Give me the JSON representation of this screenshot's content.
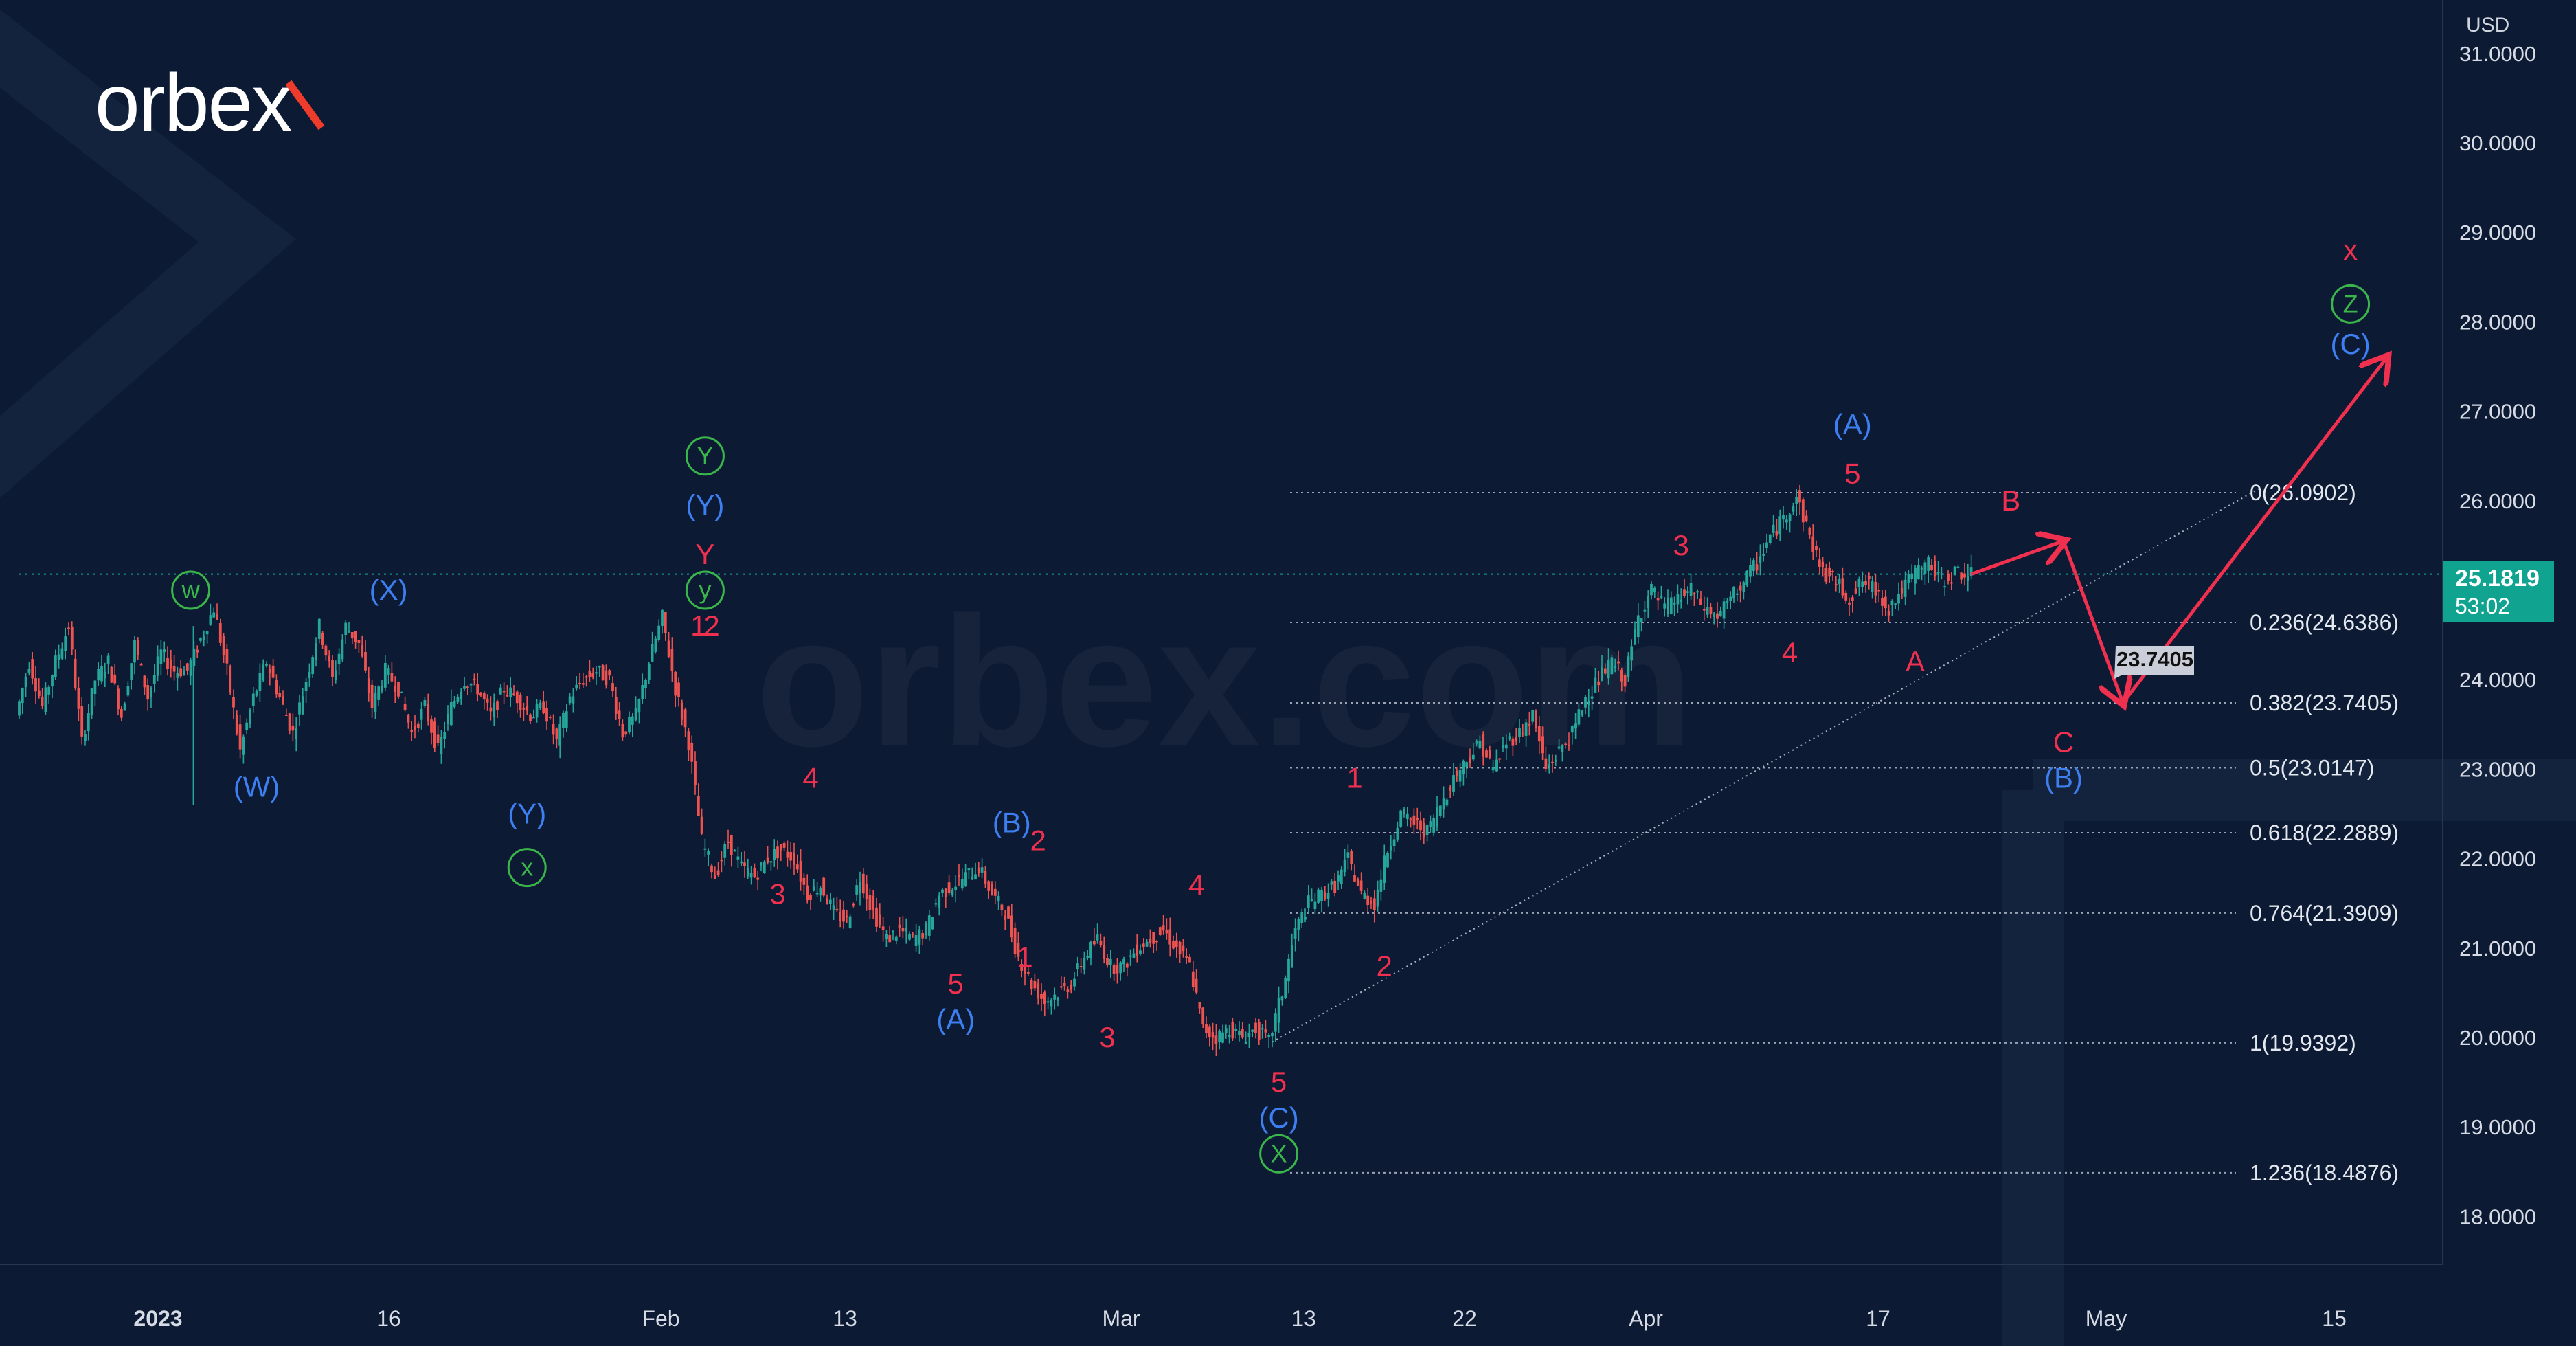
{
  "brand": {
    "logo_text": "orbex",
    "watermark_text": "orbex.com"
  },
  "chart_data": {
    "type": "candlestick",
    "currency": "USD",
    "x_tick_labels": [
      "2023",
      "16",
      "Feb",
      "13",
      "Mar",
      "13",
      "22",
      "Apr",
      "17",
      "May",
      "15"
    ],
    "y_ticks": [
      "31.0000",
      "30.0000",
      "29.0000",
      "28.0000",
      "27.0000",
      "26.0000",
      "24.0000",
      "23.0000",
      "22.0000",
      "21.0000",
      "20.0000",
      "19.0000",
      "18.0000"
    ],
    "ylim": [
      17.0,
      31.5
    ],
    "last_price": {
      "value": "25.1819",
      "countdown": "53:02"
    },
    "price_line": 25.18,
    "target_label": "23.7405",
    "fibonacci": [
      {
        "level": 26.0902,
        "label": "0(26.0902)"
      },
      {
        "level": 24.6386,
        "label": "0.236(24.6386)"
      },
      {
        "level": 23.7405,
        "label": "0.382(23.7405)"
      },
      {
        "level": 23.0147,
        "label": "0.5(23.0147)"
      },
      {
        "level": 22.2889,
        "label": "0.618(22.2889)"
      },
      {
        "level": 21.3909,
        "label": "0.764(21.3909)"
      },
      {
        "level": 19.9392,
        "label": "1(19.9392)"
      },
      {
        "level": 18.4876,
        "label": "1.236(18.4876)"
      }
    ],
    "price_path": [
      [
        0,
        23.6
      ],
      [
        4,
        24.2
      ],
      [
        8,
        23.7
      ],
      [
        12,
        24.2
      ],
      [
        16,
        24.6
      ],
      [
        20,
        23.3
      ],
      [
        24,
        24.0
      ],
      [
        28,
        24.2
      ],
      [
        32,
        23.6
      ],
      [
        36,
        24.4
      ],
      [
        40,
        23.8
      ],
      [
        44,
        24.3
      ],
      [
        48,
        24.1
      ],
      [
        52,
        24.1
      ],
      [
        60,
        24.8
      ],
      [
        64,
        24.1
      ],
      [
        68,
        23.2
      ],
      [
        72,
        23.8
      ],
      [
        76,
        24.2
      ],
      [
        80,
        23.8
      ],
      [
        84,
        23.4
      ],
      [
        88,
        24.0
      ],
      [
        92,
        24.6
      ],
      [
        96,
        24.0
      ],
      [
        100,
        24.6
      ],
      [
        104,
        24.4
      ],
      [
        108,
        23.7
      ],
      [
        112,
        24.1
      ],
      [
        116,
        23.9
      ],
      [
        120,
        23.4
      ],
      [
        124,
        23.7
      ],
      [
        128,
        23.2
      ],
      [
        132,
        23.7
      ],
      [
        136,
        24.0
      ],
      [
        140,
        23.9
      ],
      [
        144,
        23.6
      ],
      [
        148,
        23.9
      ],
      [
        152,
        23.8
      ],
      [
        156,
        23.6
      ],
      [
        160,
        23.7
      ],
      [
        164,
        23.3
      ],
      [
        168,
        23.8
      ],
      [
        172,
        24.0
      ],
      [
        176,
        24.1
      ],
      [
        180,
        24.0
      ],
      [
        184,
        23.4
      ],
      [
        188,
        23.6
      ],
      [
        192,
        24.2
      ],
      [
        196,
        24.7
      ],
      [
        200,
        23.9
      ],
      [
        204,
        23.3
      ],
      [
        208,
        22.2
      ],
      [
        212,
        21.8
      ],
      [
        216,
        22.2
      ],
      [
        220,
        21.9
      ],
      [
        224,
        21.8
      ],
      [
        228,
        22.0
      ],
      [
        232,
        22.1
      ],
      [
        236,
        22.0
      ],
      [
        240,
        21.6
      ],
      [
        244,
        21.7
      ],
      [
        248,
        21.4
      ],
      [
        252,
        21.3
      ],
      [
        256,
        21.8
      ],
      [
        260,
        21.4
      ],
      [
        264,
        21.1
      ],
      [
        268,
        21.2
      ],
      [
        272,
        21.1
      ],
      [
        276,
        21.2
      ],
      [
        280,
        21.6
      ],
      [
        284,
        21.7
      ],
      [
        288,
        21.8
      ],
      [
        292,
        21.9
      ],
      [
        296,
        21.6
      ],
      [
        300,
        21.4
      ],
      [
        304,
        20.9
      ],
      [
        308,
        20.6
      ],
      [
        312,
        20.4
      ],
      [
        316,
        20.5
      ],
      [
        320,
        20.6
      ],
      [
        324,
        20.9
      ],
      [
        328,
        21.1
      ],
      [
        332,
        20.8
      ],
      [
        336,
        20.8
      ],
      [
        340,
        21.0
      ],
      [
        344,
        21.1
      ],
      [
        348,
        21.2
      ],
      [
        352,
        21.0
      ],
      [
        356,
        20.8
      ],
      [
        360,
        20.1
      ],
      [
        364,
        20.0
      ],
      [
        368,
        20.1
      ],
      [
        372,
        20.0
      ],
      [
        376,
        20.1
      ],
      [
        380,
        19.95
      ],
      [
        384,
        20.5
      ],
      [
        388,
        21.2
      ],
      [
        392,
        21.5
      ],
      [
        396,
        21.6
      ],
      [
        400,
        21.7
      ],
      [
        404,
        22.0
      ],
      [
        408,
        21.6
      ],
      [
        412,
        21.5
      ],
      [
        416,
        22.1
      ],
      [
        420,
        22.5
      ],
      [
        424,
        22.4
      ],
      [
        428,
        22.3
      ],
      [
        432,
        22.6
      ],
      [
        436,
        22.9
      ],
      [
        440,
        23.1
      ],
      [
        444,
        23.3
      ],
      [
        448,
        23.0
      ],
      [
        452,
        23.3
      ],
      [
        456,
        23.4
      ],
      [
        460,
        23.6
      ],
      [
        464,
        23.0
      ],
      [
        468,
        23.2
      ],
      [
        472,
        23.4
      ],
      [
        476,
        23.8
      ],
      [
        480,
        24.0
      ],
      [
        484,
        24.2
      ],
      [
        488,
        24.0
      ],
      [
        492,
        24.7
      ],
      [
        496,
        25.0
      ],
      [
        500,
        24.8
      ],
      [
        504,
        24.9
      ],
      [
        508,
        25.0
      ],
      [
        512,
        24.8
      ],
      [
        516,
        24.7
      ],
      [
        520,
        24.9
      ],
      [
        524,
        25.1
      ],
      [
        528,
        25.3
      ],
      [
        532,
        25.6
      ],
      [
        536,
        25.8
      ],
      [
        540,
        26.05
      ],
      [
        544,
        25.6
      ],
      [
        548,
        25.2
      ],
      [
        552,
        25.1
      ],
      [
        556,
        24.9
      ],
      [
        560,
        25.1
      ],
      [
        564,
        25.0
      ],
      [
        568,
        24.8
      ],
      [
        572,
        25.0
      ],
      [
        576,
        25.2
      ],
      [
        580,
        25.3
      ],
      [
        584,
        25.1
      ],
      [
        588,
        25.2
      ],
      [
        592,
        25.18
      ]
    ],
    "forecast_path": [
      [
        592,
        25.18
      ],
      [
        620,
        25.55
      ],
      [
        638,
        23.74
      ],
      [
        718,
        27.6
      ]
    ],
    "trend_line": [
      [
        380,
        19.95
      ],
      [
        680,
        26.15
      ]
    ],
    "wave_labels": [
      {
        "t": "w",
        "style": "green-circle",
        "i": 52,
        "p": 25.0
      },
      {
        "t": "(W)",
        "style": "blue",
        "i": 72,
        "p": 22.8
      },
      {
        "t": "(X)",
        "style": "blue",
        "i": 112,
        "p": 25.0
      },
      {
        "t": "(Y)",
        "style": "blue",
        "i": 154,
        "p": 22.5
      },
      {
        "t": "x",
        "style": "green-circle",
        "i": 154,
        "p": 21.9
      },
      {
        "t": "Y",
        "style": "green-circle",
        "i": 208,
        "p": 26.5
      },
      {
        "t": "(Y)",
        "style": "blue",
        "i": 208,
        "p": 25.95
      },
      {
        "t": "Y",
        "style": "red",
        "i": 208,
        "p": 25.4
      },
      {
        "t": "y",
        "style": "green-circle",
        "i": 208,
        "p": 25.0
      },
      {
        "t": "1",
        "style": "red",
        "i": 206,
        "p": 24.6
      },
      {
        "t": "2",
        "style": "red",
        "i": 210,
        "p": 24.6
      },
      {
        "t": "4",
        "style": "red",
        "i": 240,
        "p": 22.9
      },
      {
        "t": "3",
        "style": "red",
        "i": 230,
        "p": 21.6
      },
      {
        "t": "5",
        "style": "red",
        "i": 284,
        "p": 20.6
      },
      {
        "t": "(A)",
        "style": "blue",
        "i": 284,
        "p": 20.2
      },
      {
        "t": "(B)",
        "style": "blue",
        "i": 301,
        "p": 22.4
      },
      {
        "t": "2",
        "style": "red",
        "i": 309,
        "p": 22.2
      },
      {
        "t": "1",
        "style": "red",
        "i": 305,
        "p": 20.9
      },
      {
        "t": "3",
        "style": "red",
        "i": 330,
        "p": 20.0
      },
      {
        "t": "4",
        "style": "red",
        "i": 357,
        "p": 21.7
      },
      {
        "t": "5",
        "style": "red",
        "i": 382,
        "p": 19.5
      },
      {
        "t": "(C)",
        "style": "blue",
        "i": 382,
        "p": 19.1
      },
      {
        "t": "X",
        "style": "green-circle",
        "i": 382,
        "p": 18.7
      },
      {
        "t": "1",
        "style": "red",
        "i": 405,
        "p": 22.9
      },
      {
        "t": "2",
        "style": "red",
        "i": 414,
        "p": 20.8
      },
      {
        "t": "3",
        "style": "red",
        "i": 504,
        "p": 25.5
      },
      {
        "t": "4",
        "style": "red",
        "i": 537,
        "p": 24.3
      },
      {
        "t": "5",
        "style": "red",
        "i": 556,
        "p": 26.3
      },
      {
        "t": "(A)",
        "style": "blue",
        "i": 556,
        "p": 26.85
      },
      {
        "t": "A",
        "style": "red",
        "i": 575,
        "p": 24.2
      },
      {
        "t": "B",
        "style": "red",
        "i": 604,
        "p": 26.0
      },
      {
        "t": "C",
        "style": "red",
        "i": 620,
        "p": 23.3
      },
      {
        "t": "(B)",
        "style": "blue",
        "i": 620,
        "p": 22.9
      },
      {
        "t": "x",
        "style": "red",
        "i": 707,
        "p": 28.8
      },
      {
        "t": "Z",
        "style": "green-circle",
        "i": 707,
        "p": 28.2
      },
      {
        "t": "(C)",
        "style": "blue",
        "i": 707,
        "p": 27.75
      }
    ]
  },
  "colors": {
    "background": "#0c1a33",
    "up": "#26a69a",
    "down": "#ef5350",
    "label_red": "#f0304f",
    "label_blue": "#3d7ff0",
    "label_green": "#3bb64a",
    "fib": "#9aa4b5",
    "axis_text": "#d6dbe5"
  }
}
